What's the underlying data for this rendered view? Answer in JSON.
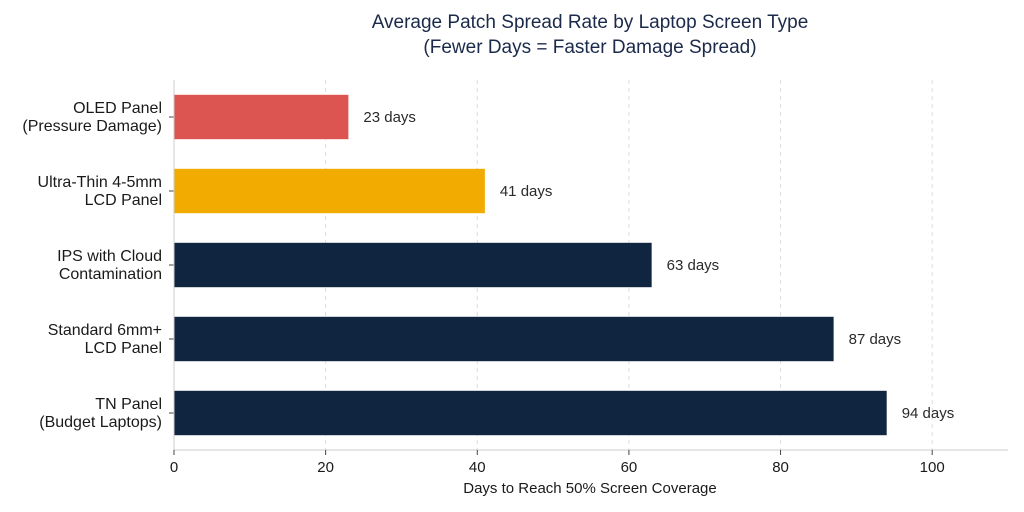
{
  "chart_data": {
    "type": "bar",
    "orientation": "horizontal",
    "title": "Average Patch Spread Rate by Laptop Screen Type",
    "subtitle": "(Fewer Days = Faster Damage Spread)",
    "xlabel": "Days to Reach 50% Screen Coverage",
    "ylabel": "",
    "xlim": [
      0,
      110
    ],
    "xticks": [
      0,
      20,
      40,
      60,
      80,
      100
    ],
    "xtick_labels": [
      "0",
      "20",
      "40",
      "60",
      "80",
      "100"
    ],
    "grid": "vertical dashed",
    "categories": [
      [
        "OLED Panel",
        "(Pressure Damage)"
      ],
      [
        "Ultra-Thin 4-5mm",
        "LCD Panel"
      ],
      [
        "IPS with Cloud",
        "Contamination"
      ],
      [
        "Standard 6mm+",
        "LCD Panel"
      ],
      [
        "TN Panel",
        "(Budget Laptops)"
      ]
    ],
    "values": [
      23,
      41,
      63,
      87,
      94
    ],
    "data_labels": [
      "23 days",
      "41 days",
      "63 days",
      "87 days",
      "94 days"
    ],
    "colors": [
      "#dd5550",
      "#f2ab00",
      "#0f2540",
      "#0f2540",
      "#0f2540"
    ]
  }
}
